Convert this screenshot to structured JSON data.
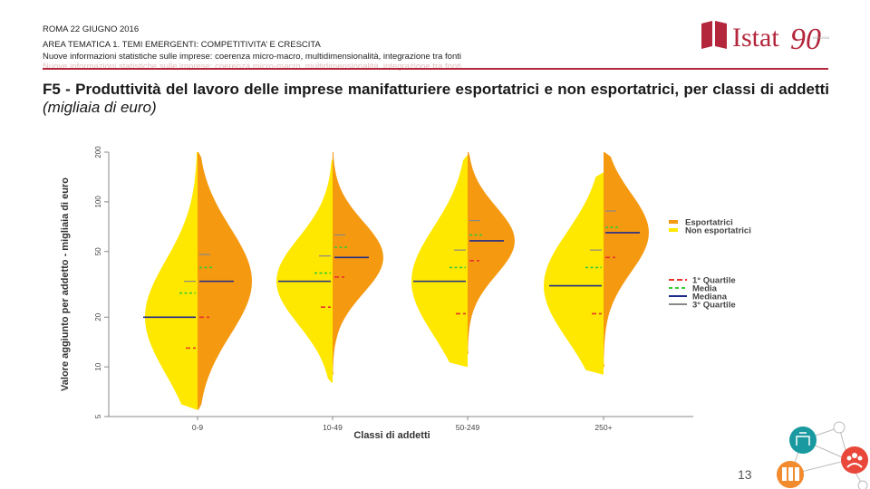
{
  "header": {
    "date": "ROMA 22 GIUGNO 2016",
    "area": "AREA TEMATICA 1. TEMI EMERGENTI: COMPETITIVITA’ E CRESCITA",
    "subtitle": "Nuove informazioni statistiche sulle imprese: coerenza micro-macro, multidimensionalità, integrazione tra fonti"
  },
  "logo": {
    "text": "Istat",
    "mark": "90",
    "small": "1926-2016"
  },
  "title": {
    "main": "F5 - Produttività del lavoro delle imprese manifatturiere esportatrici e non esportatrici, per classi di addetti",
    "italic": "(migliaia di euro)"
  },
  "colors": {
    "esportatrici": "#f59a10",
    "non_esportatrici": "#ffe800",
    "q1": "#e8332a",
    "media": "#33cc33",
    "mediana": "#1f2a8c",
    "q3": "#888888",
    "accent": "#b3263b"
  },
  "chart_data": {
    "type": "violin",
    "xlabel": "Classi di addetti",
    "ylabel": "Valore aggiunto per addetto - migliaia di euro",
    "y_scale": "log",
    "ylim": [
      5,
      200
    ],
    "yticks": [
      "5",
      "10",
      "20",
      "50",
      "100",
      "200"
    ],
    "categories": [
      "0-9",
      "10-49",
      "50-249",
      "250+"
    ],
    "legend_position": "right",
    "legend_groups": [
      "Esportatrici",
      "Non esportatrici"
    ],
    "legend_stats": [
      "1° Quartile",
      "Media",
      "Mediana",
      "3° Quartile"
    ],
    "series": [
      {
        "name": "Non esportatrici",
        "q1": [
          13,
          23,
          21,
          21
        ],
        "media": [
          28,
          37,
          40,
          40
        ],
        "mediana": [
          20,
          33,
          33,
          31
        ],
        "q3": [
          33,
          47,
          51,
          51
        ]
      },
      {
        "name": "Esportatrici",
        "q1": [
          20,
          35,
          44,
          46
        ],
        "media": [
          40,
          53,
          63,
          70
        ],
        "mediana": [
          33,
          46,
          58,
          65
        ],
        "q3": [
          48,
          63,
          77,
          88
        ]
      }
    ]
  },
  "page": {
    "number": "13"
  }
}
